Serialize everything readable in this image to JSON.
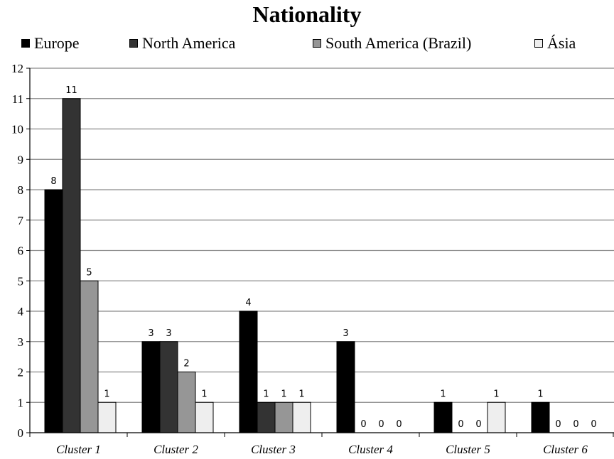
{
  "chart_data": {
    "type": "bar",
    "title": "Nationality",
    "categories": [
      "Cluster 1",
      "Cluster 2",
      "Cluster 3",
      "Cluster 4",
      "Cluster 5",
      "Cluster 6"
    ],
    "series": [
      {
        "name": "Europe",
        "color": "#000000",
        "values": [
          8,
          3,
          4,
          3,
          1,
          1
        ]
      },
      {
        "name": "North America",
        "color": "#333333",
        "values": [
          11,
          3,
          1,
          0,
          0,
          0
        ]
      },
      {
        "name": "South America (Brazil)",
        "color": "#969696",
        "values": [
          5,
          2,
          1,
          0,
          0,
          0
        ]
      },
      {
        "name": "Ásia",
        "color": "#eeeeee",
        "values": [
          1,
          1,
          1,
          0,
          1,
          0
        ]
      }
    ],
    "ylim": [
      0,
      12
    ],
    "yticks": [
      0,
      1,
      2,
      3,
      4,
      5,
      6,
      7,
      8,
      9,
      10,
      11,
      12
    ],
    "grid": true,
    "legend_position": "top",
    "data_labels": [
      [
        "8",
        "11",
        "5",
        "1"
      ],
      [
        "3",
        "3",
        "2",
        "1"
      ],
      [
        "4",
        "1",
        "1",
        "1"
      ],
      [
        "3",
        "0",
        "0",
        "0"
      ],
      [
        "1",
        "0",
        "0",
        "1"
      ],
      [
        "1",
        "0",
        "0",
        "0"
      ]
    ]
  }
}
